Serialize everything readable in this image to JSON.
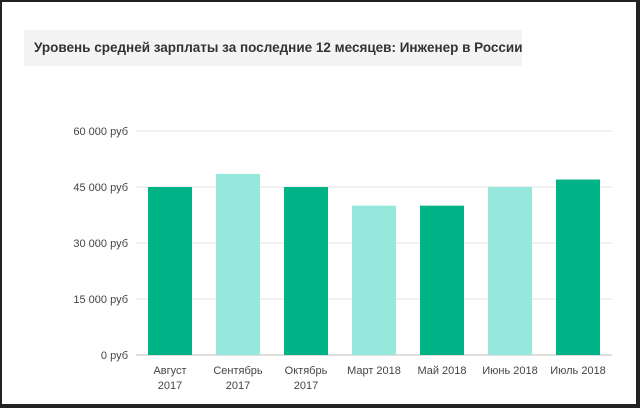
{
  "title": "Уровень средней зарплаты за последние 12 месяцев: Инженер в России",
  "chart_data": {
    "type": "bar",
    "categories": [
      [
        "Август",
        "2017"
      ],
      [
        "Сентябрь",
        "2017"
      ],
      [
        "Октябрь",
        "2017"
      ],
      [
        "Март 2018"
      ],
      [
        "Май 2018"
      ],
      [
        "Июнь 2018"
      ],
      [
        "Июль 2018"
      ]
    ],
    "values": [
      45000,
      48500,
      45000,
      40000,
      40000,
      45000,
      47000
    ],
    "bar_colors": [
      "#00b386",
      "#96e8dc",
      "#00b386",
      "#96e8dc",
      "#00b386",
      "#96e8dc",
      "#00b386"
    ],
    "yticks": [
      0,
      15000,
      30000,
      45000,
      60000
    ],
    "ytick_labels": [
      "0 руб",
      "15 000 руб",
      "30 000 руб",
      "45 000 руб",
      "60 000 руб"
    ],
    "ylim": [
      0,
      60000
    ],
    "grid": true,
    "title": "Уровень средней зарплаты за последние 12 месяцев: Инженер в России",
    "xlabel": "",
    "ylabel": ""
  }
}
